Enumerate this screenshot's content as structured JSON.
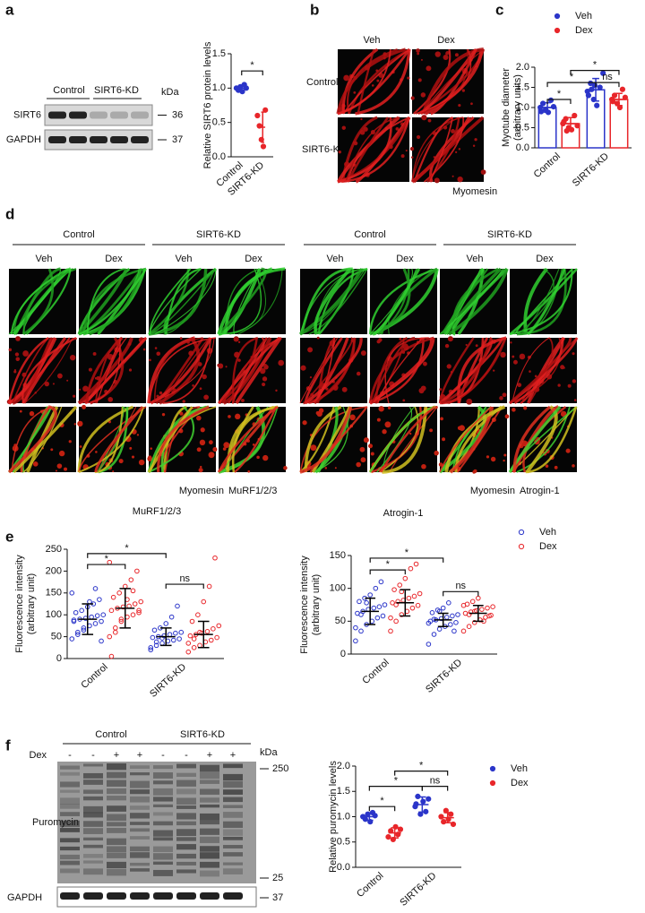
{
  "panel_labels": [
    "a",
    "b",
    "c",
    "d",
    "e",
    "f"
  ],
  "blot_a": {
    "lanes": [
      "Control",
      "SIRT6-KD"
    ],
    "unit": "kDa",
    "rows": [
      {
        "label": "SIRT6",
        "marker": 36
      },
      {
        "label": "GAPDH",
        "marker": 37
      }
    ]
  },
  "panel_b": {
    "columns": [
      "Veh",
      "Dex"
    ],
    "rows": [
      "Control",
      "SIRT6-KD"
    ],
    "stain": "Myomesin"
  },
  "panel_d": {
    "halves": [
      {
        "groups": [
          "Control",
          "SIRT6-KD"
        ],
        "columns": [
          "Veh",
          "Dex",
          "Veh",
          "Dex"
        ],
        "stains": [
          "Myomesin",
          "MuRF1/2/3"
        ]
      },
      {
        "groups": [
          "Control",
          "SIRT6-KD"
        ],
        "columns": [
          "Veh",
          "Dex",
          "Veh",
          "Dex"
        ],
        "stains": [
          "Myomesin",
          "Atrogin-1"
        ]
      }
    ]
  },
  "blot_f": {
    "groups": [
      "Control",
      "SIRT6-KD"
    ],
    "unit": "kDa",
    "treatment_label": "Dex",
    "treatment": [
      "-",
      "-",
      "+",
      "+",
      "-",
      "-",
      "+",
      "+"
    ],
    "rows": [
      {
        "label": "Puromycin",
        "markers": [
          250,
          25
        ]
      },
      {
        "label": "GAPDH",
        "markers": [
          37
        ]
      }
    ]
  },
  "chart_data": [
    {
      "type": "dotplot",
      "y_label": [
        "Relative SIRT6 protein levels"
      ],
      "categories": [
        "Control",
        "SIRT6-KD"
      ],
      "ylim": [
        0,
        1.5
      ],
      "yticks": [
        {
          "value": 0,
          "label": "0.0"
        },
        0.5,
        {
          "value": 1,
          "label": "1.0"
        },
        1.5
      ],
      "series": [
        {
          "colors": [
            "#2b35c9",
            "#e8262a"
          ],
          "values": [
            1.0,
            0.43
          ],
          "error": [
            0.04,
            0.22
          ],
          "points": [
            [
              1.0,
              0.97,
              1.02,
              0.95,
              1.05,
              1.0
            ],
            [
              0.6,
              0.45,
              0.25,
              0.15,
              0.68
            ]
          ]
        }
      ],
      "significance": [
        "*"
      ]
    },
    {
      "type": "bar",
      "y_label": [
        "Myotube diameter",
        "(arbitrary units)"
      ],
      "categories": [
        "Control",
        "SIRT6-KD"
      ],
      "ylim": [
        0,
        2
      ],
      "yticks": [
        {
          "value": 0,
          "label": "0.0"
        },
        0.5,
        {
          "value": 1,
          "label": "1.0"
        },
        1.5,
        {
          "value": 2,
          "label": "2.0"
        }
      ],
      "legend": "upper right",
      "series": [
        {
          "name": "Veh",
          "color": "#2b35c9",
          "values": [
            1.0,
            1.44
          ],
          "error": [
            0.12,
            0.28
          ],
          "points": [
            [
              1.0,
              1.1,
              0.95,
              0.88,
              1.18,
              1.02,
              0.9
            ],
            [
              1.4,
              1.6,
              1.2,
              1.05,
              1.5,
              1.85,
              1.3,
              1.45,
              1.55
            ]
          ]
        },
        {
          "name": "Dex",
          "color": "#e8262a",
          "values": [
            0.6,
            1.2
          ],
          "error": [
            0.15,
            0.15
          ],
          "points": [
            [
              0.6,
              0.72,
              0.5,
              0.45,
              0.8,
              0.55,
              0.65,
              0.42
            ],
            [
              1.2,
              1.3,
              1.1,
              1.0,
              1.45,
              1.25,
              1.15
            ]
          ]
        }
      ],
      "significance": [
        "*",
        "*",
        "ns",
        "*"
      ]
    },
    {
      "type": "dotplot",
      "title": "MuRF1/2/3",
      "title_color": "#e8262a",
      "y_label": [
        "Fluorescence intensity",
        "(arbitrary unit)"
      ],
      "categories": [
        "Control",
        "SIRT6-KD"
      ],
      "ylim": [
        0,
        250
      ],
      "yticks": [
        0,
        50,
        100,
        150,
        200,
        250
      ],
      "hollow_markers": true,
      "error_color": "#000000",
      "series": [
        {
          "color": "#2b35c9",
          "values": [
            90,
            50
          ],
          "error": [
            35,
            20
          ],
          "points": [
            [
              45,
              60,
              70,
              75,
              80,
              85,
              88,
              90,
              92,
              95,
              98,
              100,
              105,
              110,
              118,
              125,
              135,
              150,
              55,
              65,
              130,
              160,
              40,
              85
            ],
            [
              20,
              30,
              35,
              40,
              42,
              45,
              48,
              50,
              52,
              55,
              58,
              60,
              65,
              70,
              80,
              95,
              120,
              25,
              38,
              47
            ]
          ]
        },
        {
          "color": "#e8262a",
          "values": [
            115,
            55
          ],
          "error": [
            45,
            30
          ],
          "points": [
            [
              50,
              70,
              85,
              95,
              100,
              105,
              110,
              115,
              118,
              120,
              125,
              130,
              140,
              150,
              165,
              180,
              200,
              220,
              60,
              90,
              135,
              155,
              110,
              5
            ],
            [
              15,
              25,
              30,
              38,
              42,
              48,
              52,
              55,
              58,
              62,
              68,
              75,
              85,
              100,
              130,
              165,
              230,
              35,
              45,
              60
            ]
          ]
        }
      ],
      "significance": [
        "*",
        "*",
        "ns"
      ]
    },
    {
      "type": "dotplot",
      "title": "Atrogin-1",
      "title_color": "#e8262a",
      "y_label": [
        "Fluorescence intensity",
        "(arbitrary unit)"
      ],
      "categories": [
        "Control",
        "SIRT6-KD"
      ],
      "ylim": [
        0,
        150
      ],
      "yticks": [
        0,
        50,
        100,
        150
      ],
      "hollow_markers": true,
      "error_color": "#000000",
      "legend": "upper right",
      "series": [
        {
          "name": "Veh",
          "color": "#2b35c9",
          "values": [
            65,
            52
          ],
          "error": [
            20,
            10
          ],
          "points": [
            [
              20,
              35,
              45,
              50,
              55,
              58,
              62,
              65,
              68,
              70,
              72,
              75,
              80,
              85,
              90,
              100,
              110,
              40,
              60,
              78
            ],
            [
              15,
              30,
              38,
              42,
              45,
              48,
              50,
              52,
              54,
              56,
              58,
              60,
              63,
              67,
              70,
              78,
              35,
              47,
              53,
              65
            ]
          ]
        },
        {
          "name": "Dex",
          "color": "#e8262a",
          "values": [
            78,
            62
          ],
          "error": [
            20,
            12
          ],
          "points": [
            [
              35,
              50,
              60,
              65,
              70,
              74,
              78,
              80,
              82,
              85,
              88,
              92,
              98,
              105,
              115,
              130,
              137,
              55,
              75,
              95
            ],
            [
              35,
              42,
              48,
              52,
              56,
              59,
              62,
              64,
              66,
              68,
              70,
              72,
              76,
              80,
              85,
              50,
              58,
              74,
              60,
              65
            ]
          ]
        }
      ],
      "significance": [
        "*",
        "*",
        "ns"
      ]
    },
    {
      "type": "dotplot",
      "y_label": [
        "Relative puromycin levels"
      ],
      "categories": [
        "Control",
        "SIRT6-KD"
      ],
      "ylim": [
        0,
        2
      ],
      "yticks": [
        {
          "value": 0,
          "label": "0.0"
        },
        0.5,
        {
          "value": 1,
          "label": "1.0"
        },
        1.5,
        {
          "value": 2,
          "label": "2.0"
        }
      ],
      "legend": "upper right",
      "series": [
        {
          "name": "Veh",
          "color": "#2b35c9",
          "values": [
            1.0,
            1.24
          ],
          "error": [
            0.07,
            0.15
          ],
          "points": [
            [
              1.0,
              0.95,
              1.05,
              0.9,
              1.08,
              1.02
            ],
            [
              1.2,
              1.4,
              1.05,
              1.3,
              1.1,
              1.35,
              1.25
            ]
          ]
        },
        {
          "name": "Dex",
          "color": "#e8262a",
          "values": [
            0.68,
            0.98
          ],
          "error": [
            0.1,
            0.1
          ],
          "points": [
            [
              0.6,
              0.72,
              0.55,
              0.8,
              0.65,
              0.75
            ],
            [
              1.0,
              0.9,
              1.12,
              0.95,
              1.05,
              0.85
            ]
          ]
        }
      ],
      "significance": [
        "*",
        "*",
        "ns",
        "*"
      ]
    }
  ]
}
